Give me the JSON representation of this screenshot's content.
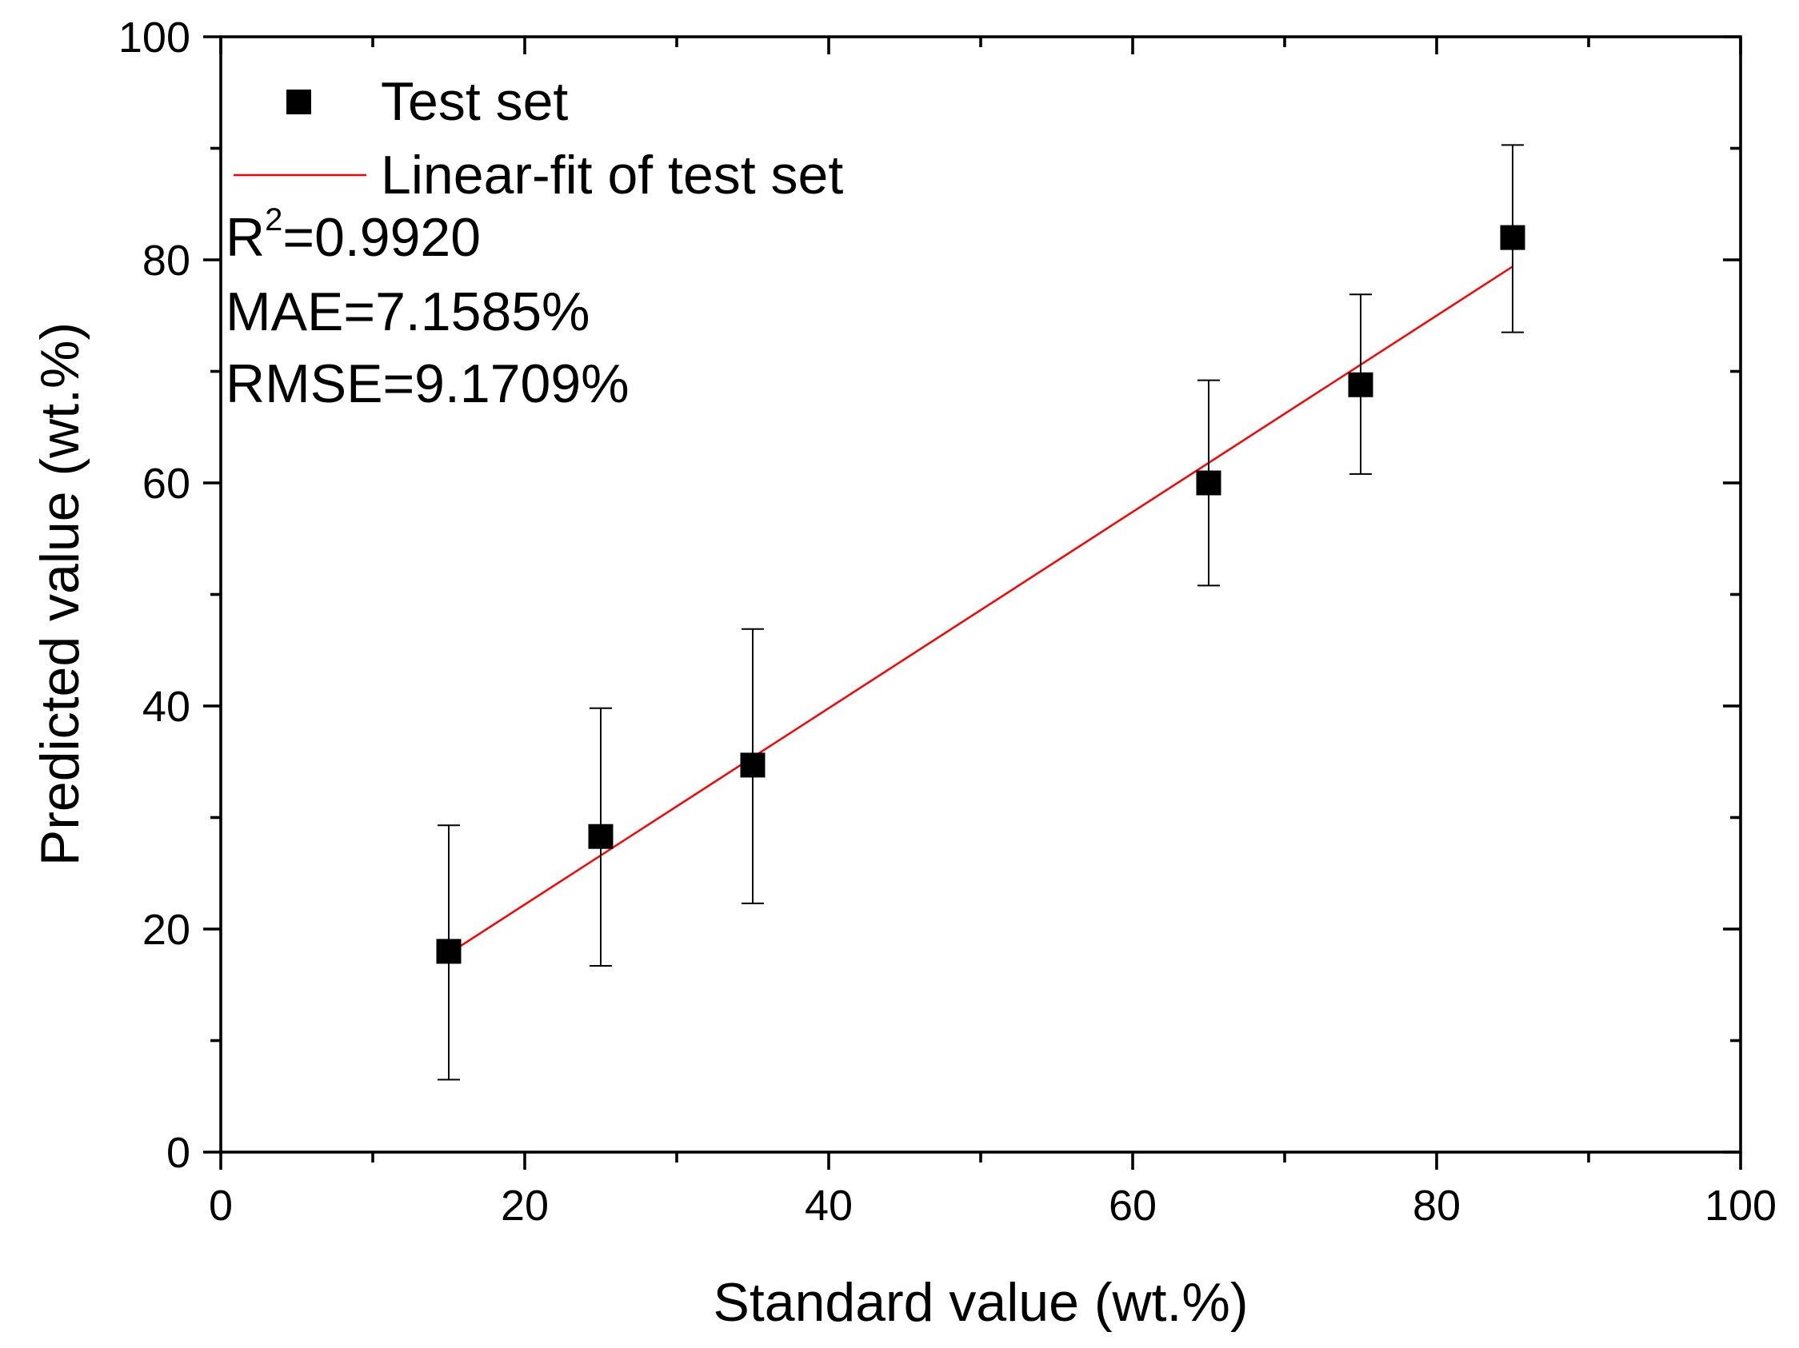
{
  "chart_data": {
    "type": "scatter",
    "title": "",
    "xlabel": "Standard value (wt.%)",
    "ylabel": "Predicted value (wt.%)",
    "xlim": [
      0,
      100
    ],
    "ylim": [
      0,
      100
    ],
    "xticks": [
      "0",
      "20",
      "40",
      "60",
      "80",
      "100"
    ],
    "yticks": [
      "0",
      "20",
      "40",
      "60",
      "80",
      "100"
    ],
    "grid": false,
    "legend_position": "top-left",
    "series": [
      {
        "name": "Test set",
        "marker": "square",
        "color": "#000000",
        "x": [
          15,
          25,
          35,
          65,
          75,
          85
        ],
        "y": [
          18.0,
          28.3,
          34.7,
          60.0,
          68.8,
          82.0
        ],
        "error_low": [
          11.5,
          11.6,
          12.4,
          9.2,
          8.0,
          8.5
        ],
        "error_high": [
          11.3,
          11.5,
          12.2,
          9.2,
          8.1,
          8.3
        ]
      },
      {
        "name": "Linear-fit of test set",
        "type": "line",
        "color": "#ff0000",
        "x": [
          15,
          85
        ],
        "y": [
          17.8,
          79.4
        ]
      }
    ],
    "annotations": {
      "r2_base": "R",
      "r2_sup": "2",
      "r2_value": "=0.9920",
      "mae": "MAE=7.1585%",
      "rmse": "RMSE=9.1709%"
    }
  }
}
